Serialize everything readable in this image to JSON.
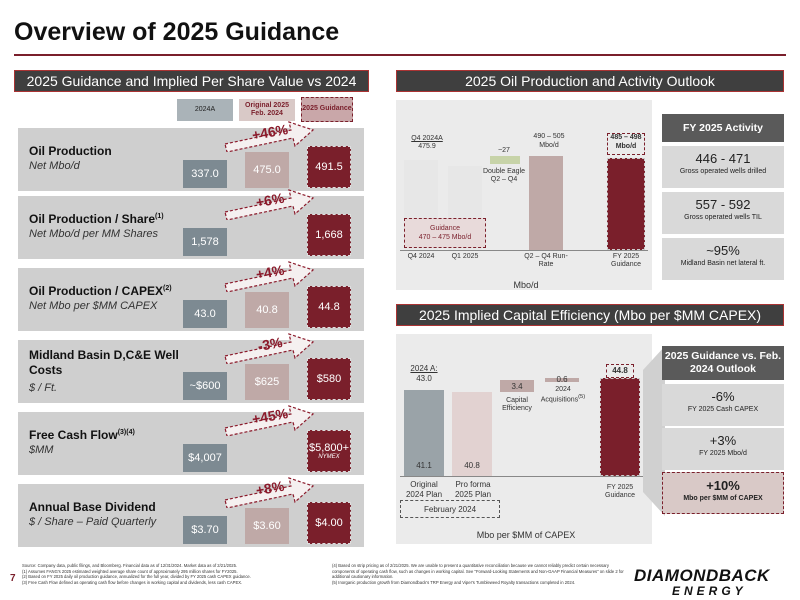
{
  "title": "Overview of 2025 Guidance",
  "left_panel": {
    "heading": "2025 Guidance and Implied Per Share Value vs 2024",
    "col_2024a": "2024A",
    "col_original": "Original 2025 Feb. 2024",
    "col_guidance": "2025 Guidance",
    "rows": [
      {
        "name": "Oil Production",
        "sup": "",
        "sub": "Net Mbo/d",
        "a": "337.0",
        "o": "475.0",
        "g": "491.5",
        "change": "+46%",
        "note": ""
      },
      {
        "name": "Oil Production / Share",
        "sup": "(1)",
        "sub": "Net Mbo/d per MM Shares",
        "a": "1,578",
        "o": "",
        "g": "1,668",
        "change": "+6%",
        "note": ""
      },
      {
        "name": "Oil Production / CAPEX",
        "sup": "(2)",
        "sub": "Net Mbo per $MM CAPEX",
        "a": "43.0",
        "o": "40.8",
        "g": "44.8",
        "change": "+4%",
        "note": ""
      },
      {
        "name": "Midland Basin D,C&E Well Costs",
        "sup": "",
        "sub": "$ / Ft.",
        "a": "~$600",
        "o": "$625",
        "g": "$580",
        "change": "-3%",
        "note": ""
      },
      {
        "name": "Free Cash Flow",
        "sup": "(3)(4)",
        "sub": "$MM",
        "a": "$4,007",
        "o": "",
        "g": "$5,800+",
        "change": "+45%",
        "note": "NYMEX"
      },
      {
        "name": "Annual Base Dividend",
        "sup": "",
        "sub": "$ / Share – Paid Quarterly",
        "a": "$3.70",
        "o": "$3.60",
        "g": "$4.00",
        "change": "+8%",
        "note": ""
      }
    ]
  },
  "oil_panel": {
    "heading": "2025 Oil Production and Activity Outlook",
    "q4_label": "Q4 2024A",
    "q4_value": "475.9",
    "guidance_label": "Guidance",
    "guidance_range": "470 – 475 Mbo/d",
    "step_value": "~27",
    "step_label": "Double Eagle Q2 – Q4",
    "runrate_value": "490 – 505",
    "runrate_unit": "Mbo/d",
    "fy_value": "485 – 498",
    "fy_unit": "Mbo/d",
    "x_labels": [
      "Q4 2024",
      "Q1 2025",
      "Q2 – Q4 Run-Rate",
      "FY 2025 Guidance"
    ],
    "axis_label": "Mbo/d"
  },
  "activity": {
    "heading": "FY 2025 Activity",
    "cards": [
      {
        "value": "446 - 471",
        "label": "Gross operated wells drilled"
      },
      {
        "value": "557 - 592",
        "label": "Gross operated wells TIL"
      },
      {
        "value": "~95%",
        "label": "Midland Basin net lateral ft."
      }
    ]
  },
  "eff_panel": {
    "heading": "2025 Implied Capital Efficiency (Mbo per $MM CAPEX)",
    "a_label": "2024 A:",
    "a_value": "43.0",
    "orig_value": "41.1",
    "proforma_value": "40.8",
    "capital_value": "3.4",
    "capital_label": "Capital Efficiency",
    "acq_value": "0.6",
    "acq_label": "2024 Acquisitions",
    "acq_sup": "(5)",
    "fy_value": "44.8",
    "x_orig": "Original 2024 Plan",
    "x_proforma": "Pro forma 2025 Plan",
    "x_bracket": "February 2024",
    "x_fy": "FY 2025 Guidance",
    "axis_label": "Mbo per $MM of CAPEX"
  },
  "vs_outlook": {
    "heading": "2025 Guidance vs. Feb. 2024 Outlook",
    "cards": [
      {
        "value": "-6%",
        "label": "FY 2025 Cash CAPEX"
      },
      {
        "value": "+3%",
        "label": "FY 2025 Mbo/d"
      },
      {
        "value": "+10%",
        "label": "Mbo per $MM of CAPEX"
      }
    ]
  },
  "footnotes": {
    "source": "Source: Company data, public filings, and Bloomberg. Financial data as of 12/31/2024. Market data as of 2/21/2025.",
    "n1": "(1)   Assumes FANG's 2025 estimated weighted average share count of approximately 295 million shares for FY2025.",
    "n2": "(2)   Based on FY 2025 daily oil production guidance, annualized for the full year, divided by FY 2025 cash CAPEX guidance.",
    "n3": "(3)   Free Cash Flow defined as operating cash flow before changes in working capital and dividends, less cash CAPEX.",
    "n4": "(4)   Based on strip pricing as of 2/21/2025. We are unable to present a quantitative reconciliation because we cannot reliably predict certain necessary components of operating cash flow, such as changes in working capital. See \"Forward-Looking Statements and Non-GAAP Financial Measures\" on slide 2 for additional cautionary information.",
    "n5": "(5)   Inorganic production growth from Diamondback's TRP Energy and Viper's Tumbleweed Royalty transactions completed in 2024."
  },
  "page_number": "7",
  "logo_line1": "DIAMONDBACK",
  "logo_line2": "ENERGY",
  "colors": {
    "accent": "#7a1f2b",
    "gray_bar": "#7d8a92",
    "pink_bar": "#bfa9a7",
    "panel_head": "#3f3f3f"
  }
}
